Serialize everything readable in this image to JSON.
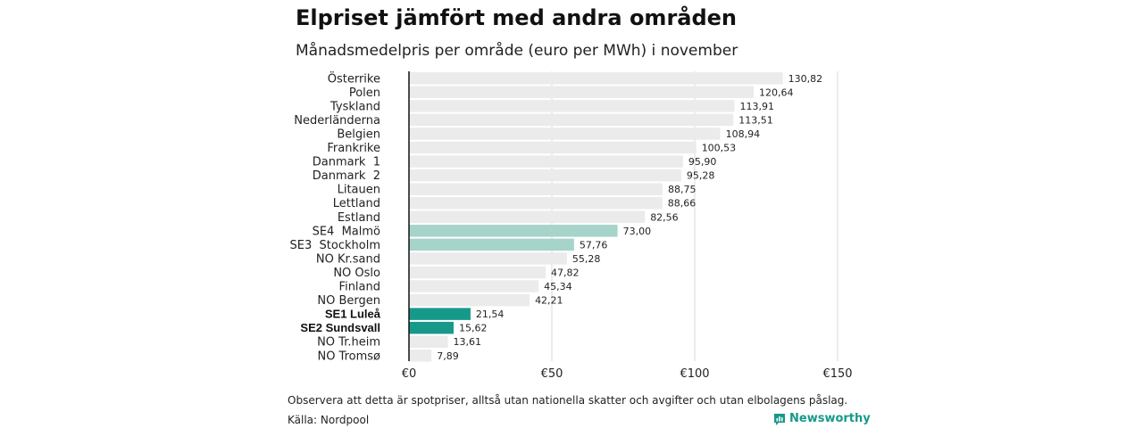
{
  "header": {
    "title": "Elpriset jämfört med andra områden",
    "subtitle": "Månadsmedelpris per område (euro per MWh) i november"
  },
  "footer": {
    "note": "Observera att detta är spotpriser, alltså utan nationella skatter och avgifter och utan elbolagens påslag.",
    "source": "Källa: Nordpool",
    "brand": "Newsworthy",
    "brand_icon": "newsworthy-logo-icon"
  },
  "colors": {
    "bar_default": "#ebebeb",
    "bar_light_teal": "#a6d4ca",
    "bar_teal": "#17998a",
    "grid": "#d9d9d9",
    "axis": "#111111"
  },
  "chart_data": {
    "type": "bar",
    "orientation": "horizontal",
    "title": "Elpriset jämfört med andra områden",
    "subtitle": "Månadsmedelpris per område (euro per MWh) i november",
    "categories": [
      "Österrike",
      "Polen",
      "Tyskland",
      "Nederländerna",
      "Belgien",
      "Frankrike",
      "Danmark  1",
      "Danmark  2",
      "Litauen",
      "Lettland",
      "Estland",
      "SE4  Malmö",
      "SE3  Stockholm",
      "NO Kr.sand",
      "NO Oslo",
      "Finland",
      "NO Bergen",
      "SE1 Luleå",
      "SE2 Sundsvall",
      "NO Tr.heim",
      "NO Tromsø"
    ],
    "values": [
      130.82,
      120.64,
      113.91,
      113.51,
      108.94,
      100.53,
      95.9,
      95.28,
      88.75,
      88.66,
      82.56,
      73.0,
      57.76,
      55.28,
      47.82,
      45.34,
      42.21,
      21.54,
      15.62,
      13.61,
      7.89
    ],
    "value_labels": [
      "130,82",
      "120,64",
      "113,91",
      "113,51",
      "108,94",
      "100,53",
      "95,90",
      "95,28",
      "88,75",
      "88,66",
      "82,56",
      "73,00",
      "57,76",
      "55,28",
      "47,82",
      "45,34",
      "42,21",
      "21,54",
      "15,62",
      "13,61",
      "7,89"
    ],
    "highlight": [
      "none",
      "none",
      "none",
      "none",
      "none",
      "none",
      "none",
      "none",
      "none",
      "none",
      "none",
      "light",
      "light",
      "none",
      "none",
      "none",
      "none",
      "strong",
      "strong",
      "none",
      "none"
    ],
    "bold_labels": [
      "SE1 Luleå",
      "SE2 Sundsvall"
    ],
    "xlim": [
      0,
      150
    ],
    "xticks": [
      0,
      50,
      100,
      150
    ],
    "xtick_labels": [
      "€0",
      "€50",
      "€100",
      "€150"
    ],
    "grid": true
  }
}
